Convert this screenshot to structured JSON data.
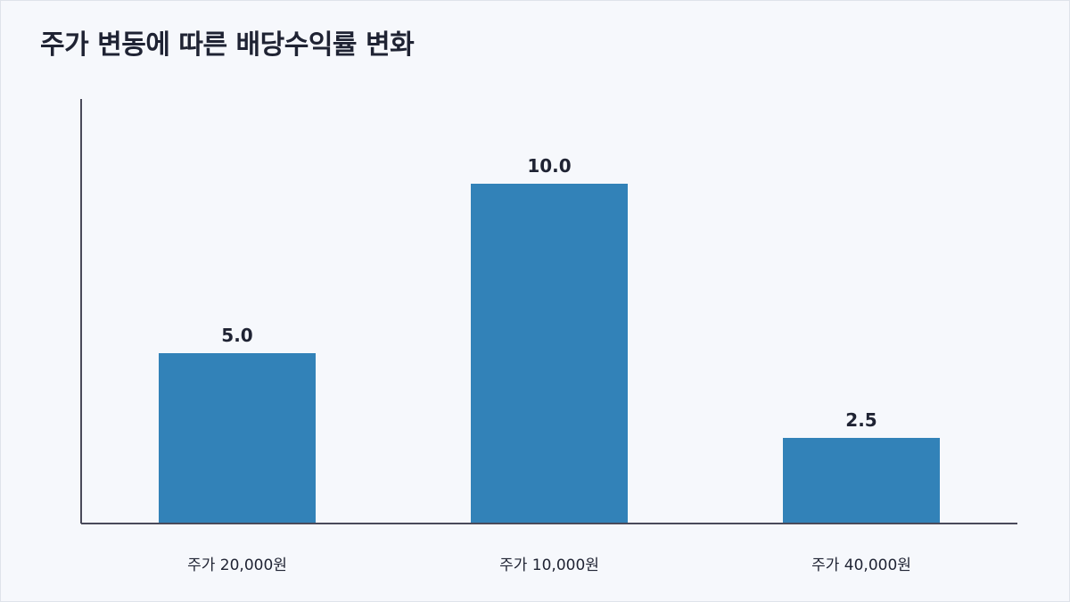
{
  "title": "주가 변동에 따른 배당수익률 변화",
  "colors": {
    "bar": "#3282b8",
    "axis": "#4a4a5a",
    "text": "#1f2333",
    "background": "#f6f8fc"
  },
  "chart_data": {
    "type": "bar",
    "title": "주가 변동에 따른 배당수익률 변화",
    "xlabel": "",
    "ylabel": "",
    "categories": [
      "주가 20,000원",
      "주가 10,000원",
      "주가 40,000원"
    ],
    "values": [
      5.0,
      10.0,
      2.5
    ],
    "value_labels": [
      "5.0",
      "10.0",
      "2.5"
    ],
    "ylim": [
      0,
      12.5
    ],
    "grid": false,
    "legend": "none"
  }
}
